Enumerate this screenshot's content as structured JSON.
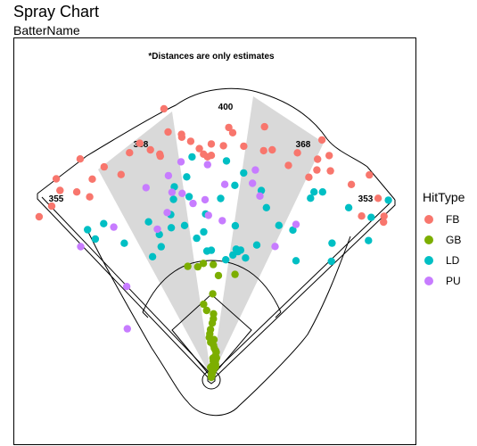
{
  "chart_data": {
    "type": "scatter",
    "title": "Spray Chart",
    "subtitle": "BatterName",
    "note": "*Distances are only estimates",
    "distance_labels": [
      "355",
      "368",
      "400",
      "368",
      "353"
    ],
    "legend_title": "HitType",
    "legend_position": "right",
    "grid": false,
    "series": [
      {
        "name": "FB",
        "color": "#F8766D",
        "points": [
          [
            -47,
            330
          ],
          [
            -31,
            357
          ],
          [
            -39,
            337
          ],
          [
            -34,
            305
          ],
          [
            -17,
            343
          ],
          [
            -10,
            349
          ],
          [
            -10,
            382
          ],
          [
            -43,
            328
          ],
          [
            -36,
            321
          ],
          [
            -24,
            311
          ],
          [
            -31,
            324
          ],
          [
            -27,
            331
          ],
          [
            -20,
            335
          ],
          [
            -13,
            321
          ],
          [
            -13,
            318
          ],
          [
            -15,
            330
          ],
          [
            -7,
            343
          ],
          [
            -7,
            339
          ],
          [
            -3,
            321
          ],
          [
            -2,
            313
          ],
          [
            0,
            327
          ],
          [
            0,
            311
          ],
          [
            4,
            351
          ],
          [
            5,
            344
          ],
          [
            12,
            359
          ],
          [
            13,
            326
          ],
          [
            15,
            330
          ],
          [
            21,
            337
          ],
          [
            25,
            367
          ],
          [
            28,
            352
          ],
          [
            26,
            340
          ],
          [
            30,
            334
          ],
          [
            27,
            326
          ],
          [
            36,
            334
          ],
          [
            38,
            360
          ],
          [
            43,
            343
          ],
          [
            43,
            309
          ],
          [
            47,
            331
          ],
          [
            48,
            325
          ],
          [
            26,
            312
          ],
          [
            -38,
            353
          ],
          [
            -5,
            332
          ],
          [
            8,
            327
          ],
          [
            3,
            325
          ],
          [
            -1,
            309
          ],
          [
            20,
            316
          ]
        ]
      },
      {
        "name": "GB",
        "color": "#7CAE00",
        "points": [
          [
            -12,
            159
          ],
          [
            -7,
            156
          ],
          [
            -4,
            160
          ],
          [
            1,
            158
          ],
          [
            13,
            148
          ],
          [
            4,
            143
          ],
          [
            1,
            117
          ],
          [
            -6,
            103
          ],
          [
            -4,
            94
          ],
          [
            2,
            89
          ],
          [
            2,
            82
          ],
          [
            1,
            76
          ],
          [
            -1,
            67
          ],
          [
            -2,
            61
          ],
          [
            -3,
            56
          ],
          [
            4,
            53
          ],
          [
            -1,
            49
          ],
          [
            4,
            45
          ],
          [
            6,
            41
          ],
          [
            9,
            38
          ],
          [
            11,
            36
          ],
          [
            11,
            31
          ],
          [
            15,
            28
          ],
          [
            14,
            23
          ],
          [
            13,
            20
          ],
          [
            18,
            19
          ],
          [
            22,
            16
          ],
          [
            5,
            27
          ],
          [
            7,
            23
          ],
          [
            5,
            16
          ],
          [
            4,
            11
          ],
          [
            7,
            8
          ],
          [
            9,
            5
          ],
          [
            3,
            5
          ],
          [
            12,
            6
          ],
          [
            11,
            12
          ],
          [
            17,
            11
          ],
          [
            10,
            2
          ],
          [
            4,
            2
          ],
          [
            6,
            0
          ],
          [
            8,
            3
          ],
          [
            14,
            3
          ],
          [
            -4,
            14
          ]
        ]
      },
      {
        "name": "LD",
        "color": "#00BFC4",
        "points": [
          [
            -40,
            270
          ],
          [
            -35,
            263
          ],
          [
            -33,
            224
          ],
          [
            -26,
            188
          ],
          [
            -15,
            217
          ],
          [
            -21,
            196
          ],
          [
            -20,
            213
          ],
          [
            -14,
            235
          ],
          [
            -12,
            255
          ],
          [
            -11,
            272
          ],
          [
            -7,
            283
          ],
          [
            -5,
            310
          ],
          [
            -7,
            255
          ],
          [
            -10,
            216
          ],
          [
            -3,
            204
          ],
          [
            -6,
            196
          ],
          [
            -2,
            177
          ],
          [
            0,
            178
          ],
          [
            -2,
            229
          ],
          [
            3,
            251
          ],
          [
            4,
            304
          ],
          [
            9,
            290
          ],
          [
            7,
            271
          ],
          [
            9,
            215
          ],
          [
            12,
            180
          ],
          [
            11,
            183
          ],
          [
            10,
            174
          ],
          [
            7,
            166
          ],
          [
            16,
            174
          ],
          [
            13,
            183
          ],
          [
            19,
            196
          ],
          [
            24,
            233
          ],
          [
            29,
            287
          ],
          [
            29,
            297
          ],
          [
            29,
            236
          ],
          [
            36,
            202
          ],
          [
            39,
            306
          ],
          [
            45,
            351
          ],
          [
            45,
            317
          ],
          [
            49,
            292
          ],
          [
            31,
            303
          ],
          [
            46,
            234
          ],
          [
            42,
            253
          ],
          [
            -40,
            253
          ],
          [
            15,
            271
          ],
          [
            18,
            250
          ],
          [
            -22,
            235
          ]
        ]
      },
      {
        "name": "PU",
        "color": "#C77CFF",
        "points": [
          [
            -60,
            136
          ],
          [
            -45,
            259
          ],
          [
            -33,
            251
          ],
          [
            -19,
            281
          ],
          [
            -20,
            221
          ],
          [
            -15,
            239
          ],
          [
            -12,
            289
          ],
          [
            -8,
            305
          ],
          [
            -9,
            261
          ],
          [
            -6,
            245
          ],
          [
            -12,
            265
          ],
          [
            -2,
            249
          ],
          [
            -1,
            227
          ],
          [
            4,
            220
          ],
          [
            12,
            278
          ],
          [
            15,
            263
          ],
          [
            12,
            297
          ],
          [
            29,
            245
          ],
          [
            26,
            204
          ],
          [
            -1,
            298
          ],
          [
            -43,
            174
          ],
          [
            4,
            271
          ]
        ]
      }
    ]
  }
}
